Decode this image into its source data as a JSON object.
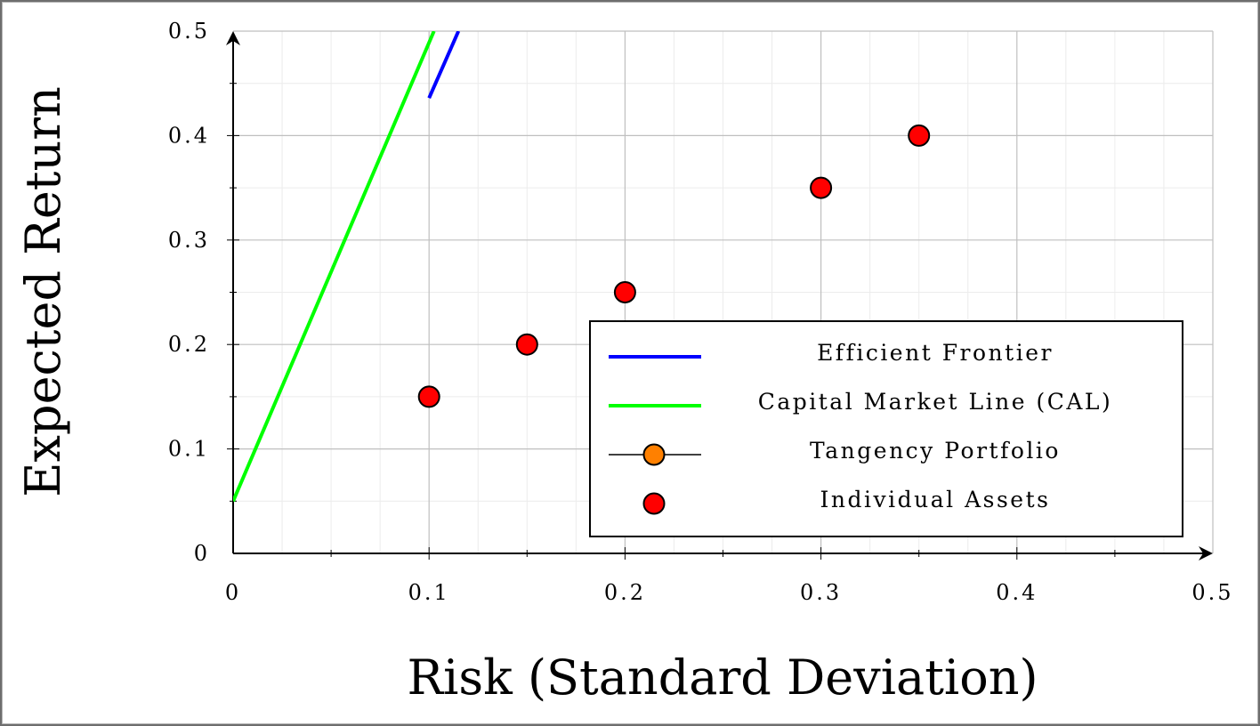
{
  "chart_data": {
    "type": "scatter",
    "title": "",
    "xlabel": "Risk (Standard Deviation)",
    "ylabel": "Expected Return",
    "xlim": [
      0,
      0.5
    ],
    "ylim": [
      0,
      0.5
    ],
    "grid": true,
    "x_ticks": [
      "0",
      "0.1",
      "0.2",
      "0.3",
      "0.4",
      "0.5"
    ],
    "y_ticks": [
      "0",
      "0.1",
      "0.2",
      "0.3",
      "0.4",
      "0.5"
    ],
    "legend_position": "lower-right",
    "series": [
      {
        "name": "Efficient Frontier",
        "type": "line",
        "color": "#0000ff",
        "points": [
          [
            0.1,
            0.436
          ],
          [
            0.115,
            0.5
          ]
        ]
      },
      {
        "name": "Capital Market Line (CAL)",
        "type": "line",
        "color": "#00ff00",
        "points": [
          [
            0.0,
            0.05
          ],
          [
            0.1025,
            0.5
          ]
        ]
      },
      {
        "name": "Tangency Portfolio",
        "type": "marker-line",
        "color": "#ff8000",
        "points": []
      },
      {
        "name": "Individual Assets",
        "type": "scatter",
        "color": "#ff0000",
        "points": [
          [
            0.1,
            0.15
          ],
          [
            0.15,
            0.2
          ],
          [
            0.2,
            0.25
          ],
          [
            0.3,
            0.35
          ],
          [
            0.35,
            0.4
          ]
        ]
      }
    ]
  }
}
